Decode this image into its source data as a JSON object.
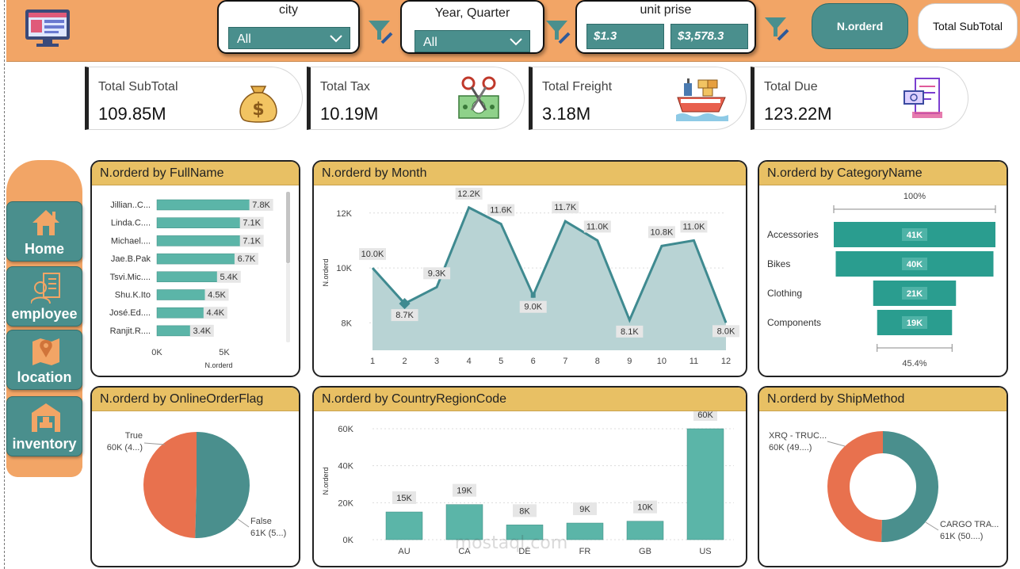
{
  "filters": {
    "city": {
      "title": "city",
      "value": "All"
    },
    "year_quarter": {
      "title": "Year, Quarter",
      "value": "All"
    },
    "unit_price": {
      "title": "unit prise",
      "min": "$1.3",
      "max": "$3,578.3"
    }
  },
  "toggles": {
    "norderd": "N.orderd",
    "total_subtotal": "Total SubTotal"
  },
  "kpis": [
    {
      "label": "Total SubTotal",
      "value": "109.85M",
      "icon": "money-bag-icon"
    },
    {
      "label": "Total Tax",
      "value": "10.19M",
      "icon": "tax-icon"
    },
    {
      "label": "Total Freight",
      "value": "3.18M",
      "icon": "cargo-ship-icon"
    },
    {
      "label": "Total Due",
      "value": "123.22M",
      "icon": "invoice-icon"
    }
  ],
  "nav": [
    {
      "label": "Home",
      "icon": "home-icon"
    },
    {
      "label": "employee",
      "icon": "employee-icon"
    },
    {
      "label": "location",
      "icon": "location-icon"
    },
    {
      "label": "inventory",
      "icon": "warehouse-icon"
    }
  ],
  "colors": {
    "teal": "#4a8f8d",
    "bar_teal": "#5bb5a8",
    "orange": "#f2a566",
    "header": "#e8c064",
    "coral": "#e8714e"
  },
  "watermark": {
    "text": "mostaql.com"
  },
  "chart_data": [
    {
      "type": "bar",
      "title": "N.orderd by FullName",
      "orientation": "horizontal",
      "categories": [
        "Jillian..C...",
        "Linda.C....",
        "Michael....",
        "Jae.B.Pak",
        "Tsvi.Mic....",
        "Shu.K.Ito",
        "José.Ed....",
        "Ranjit.R...."
      ],
      "values": [
        7.8,
        7.1,
        7.1,
        6.7,
        5.4,
        4.5,
        4.4,
        3.4
      ],
      "labels": [
        "7.8K",
        "7.1K",
        "7.1K",
        "6.7K",
        "5.4K",
        "4.5K",
        "4.4K",
        "3.4K"
      ],
      "xlabel": "N.orderd",
      "xticks": [
        "0K",
        "5K"
      ],
      "xlim": [
        0,
        8
      ]
    },
    {
      "type": "area",
      "title": "N.orderd by Month",
      "x": [
        1,
        2,
        3,
        4,
        5,
        6,
        7,
        8,
        9,
        10,
        11,
        12
      ],
      "values": [
        10.0,
        8.7,
        9.3,
        12.2,
        11.6,
        9.0,
        11.7,
        11.0,
        8.1,
        10.8,
        11.0,
        8.0
      ],
      "labels": [
        "10.0K",
        "8.7K",
        "9.3K",
        "12.2K",
        "11.6K",
        "9.0K",
        "11.7K",
        "11.0K",
        "8.1K",
        "10.8K",
        "11.0K",
        "8.0K"
      ],
      "ylabel": "N.orderd",
      "yticks": [
        "8K",
        "10K",
        "12K"
      ],
      "ylim": [
        7,
        12.6
      ]
    },
    {
      "type": "bar",
      "title": "N.orderd by CategoryName",
      "subtype": "funnel",
      "categories": [
        "Accessories",
        "Bikes",
        "Clothing",
        "Components"
      ],
      "values": [
        41,
        40,
        21,
        19
      ],
      "labels": [
        "41K",
        "40K",
        "21K",
        "19K"
      ],
      "top_percent": "100%",
      "bottom_percent": "45.4%"
    },
    {
      "type": "pie",
      "title": "N.orderd by OnlineOrderFlag",
      "categories": [
        "True",
        "False"
      ],
      "values": [
        60,
        61
      ],
      "labels": [
        "60K (4...)",
        "61K (5...)"
      ]
    },
    {
      "type": "bar",
      "title": "N.orderd by CountryRegionCode",
      "categories": [
        "AU",
        "CA",
        "DE",
        "FR",
        "GB",
        "US"
      ],
      "values": [
        15,
        19,
        8,
        9,
        10,
        60
      ],
      "labels": [
        "15K",
        "19K",
        "8K",
        "9K",
        "10K",
        "60K"
      ],
      "ylabel": "N.orderd",
      "yticks": [
        "0K",
        "20K",
        "40K",
        "60K"
      ],
      "ylim": [
        0,
        66
      ]
    },
    {
      "type": "pie",
      "subtype": "donut",
      "title": "N.orderd by ShipMethod",
      "categories": [
        "XRQ - TRUC...",
        "CARGO TRA..."
      ],
      "values": [
        60,
        61
      ],
      "labels": [
        "60K (49....)",
        "61K (50....)"
      ]
    }
  ]
}
